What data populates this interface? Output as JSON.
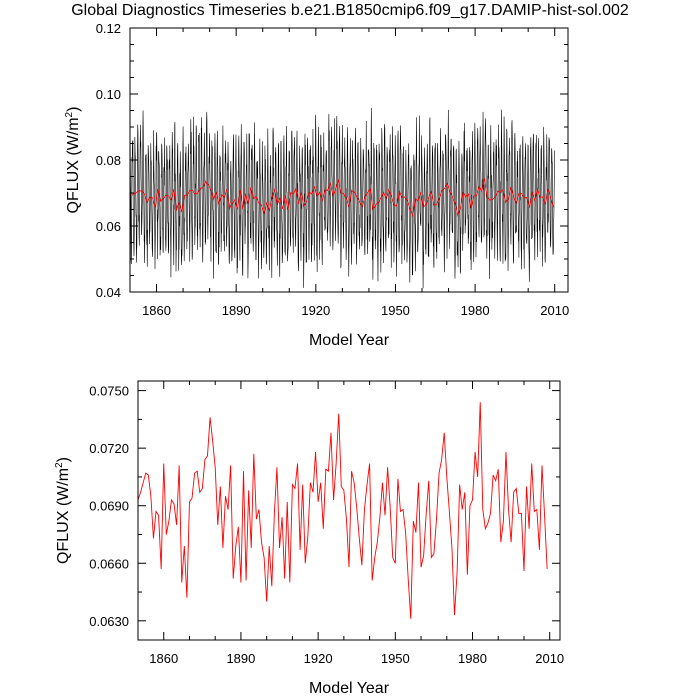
{
  "title": "Global Diagnostics Timeseries b.e21.B1850cmip6.f09_g17.DAMIP-hist-sol.002",
  "colors": {
    "monthly": "#000000",
    "annual": "#ff0000",
    "axes": "#000000",
    "background": "#ffffff"
  },
  "chart_data": [
    {
      "type": "line",
      "xlabel": "Model Year",
      "ylabel_main": "QFLUX (W/m",
      "ylabel_sup": "2",
      "ylabel_tail": ")",
      "xlim": [
        1850,
        2015
      ],
      "ylim": [
        0.04,
        0.12
      ],
      "xticks": [
        1860,
        1890,
        1920,
        1950,
        1980,
        2010
      ],
      "xtick_labels": [
        "1860",
        "1890",
        "1920",
        "1950",
        "1980",
        "2010"
      ],
      "yticks": [
        0.04,
        0.06,
        0.08,
        0.1,
        0.12
      ],
      "ytick_labels": [
        "0.04",
        "0.06",
        "0.08",
        "0.10",
        "0.12"
      ],
      "series": [
        {
          "color": "#000000",
          "resolution": "monthly",
          "annual_cycle_amplitude": 0.018,
          "noise": 0.006
        },
        {
          "color": "#ff0000",
          "resolution": "annual"
        }
      ]
    },
    {
      "type": "line",
      "xlabel": "Model Year",
      "ylabel_main": "QFLUX (W/m",
      "ylabel_sup": "2",
      "ylabel_tail": ")",
      "xlim": [
        1850,
        2014
      ],
      "ylim": [
        0.062,
        0.0755
      ],
      "xticks": [
        1860,
        1890,
        1920,
        1950,
        1980,
        2010
      ],
      "xtick_labels": [
        "1860",
        "1890",
        "1920",
        "1950",
        "1980",
        "2010"
      ],
      "yticks": [
        0.063,
        0.066,
        0.069,
        0.072,
        0.075
      ],
      "ytick_labels": [
        "0.0630",
        "0.0660",
        "0.0690",
        "0.0720",
        "0.0750"
      ],
      "series": [
        {
          "color": "#ff0000",
          "x_start": 1850,
          "values": [
            0.0693,
            0.0697,
            0.0702,
            0.0707,
            0.0706,
            0.0695,
            0.0673,
            0.0687,
            0.0685,
            0.0657,
            0.0712,
            0.0675,
            0.0682,
            0.0693,
            0.0691,
            0.068,
            0.0711,
            0.065,
            0.0669,
            0.0642,
            0.0692,
            0.0694,
            0.0707,
            0.0708,
            0.0697,
            0.0699,
            0.0714,
            0.0716,
            0.0736,
            0.0724,
            0.071,
            0.068,
            0.07,
            0.0668,
            0.0695,
            0.0688,
            0.0711,
            0.0652,
            0.0669,
            0.0679,
            0.065,
            0.0708,
            0.0651,
            0.0698,
            0.0668,
            0.0717,
            0.0683,
            0.0688,
            0.0671,
            0.0663,
            0.064,
            0.0669,
            0.0648,
            0.0686,
            0.071,
            0.0668,
            0.0684,
            0.0652,
            0.0692,
            0.065,
            0.0701,
            0.0699,
            0.0712,
            0.0667,
            0.0701,
            0.066,
            0.0674,
            0.0702,
            0.0697,
            0.0718,
            0.0692,
            0.0702,
            0.0678,
            0.0709,
            0.0708,
            0.0728,
            0.0693,
            0.0712,
            0.0738,
            0.07,
            0.0698,
            0.0683,
            0.0658,
            0.0708,
            0.0702,
            0.0689,
            0.0673,
            0.0659,
            0.0688,
            0.0701,
            0.0712,
            0.0651,
            0.0663,
            0.0671,
            0.0684,
            0.0702,
            0.0685,
            0.071,
            0.0689,
            0.0663,
            0.066,
            0.0704,
            0.0687,
            0.0688,
            0.0676,
            0.0652,
            0.0631,
            0.0682,
            0.0676,
            0.0702,
            0.0658,
            0.0664,
            0.0686,
            0.0703,
            0.0663,
            0.0665,
            0.0683,
            0.0707,
            0.0714,
            0.0728,
            0.0705,
            0.0687,
            0.0668,
            0.0633,
            0.0655,
            0.0701,
            0.0688,
            0.0697,
            0.0654,
            0.069,
            0.0693,
            0.0718,
            0.0705,
            0.0744,
            0.0688,
            0.0678,
            0.0681,
            0.0686,
            0.0706,
            0.0703,
            0.0709,
            0.0671,
            0.0682,
            0.0718,
            0.0688,
            0.0671,
            0.0697,
            0.0699,
            0.0686,
            0.0686,
            0.0656,
            0.07,
            0.0678,
            0.0712,
            0.0687,
            0.0688,
            0.0667,
            0.0711,
            0.0685,
            0.0657
          ]
        }
      ]
    }
  ]
}
